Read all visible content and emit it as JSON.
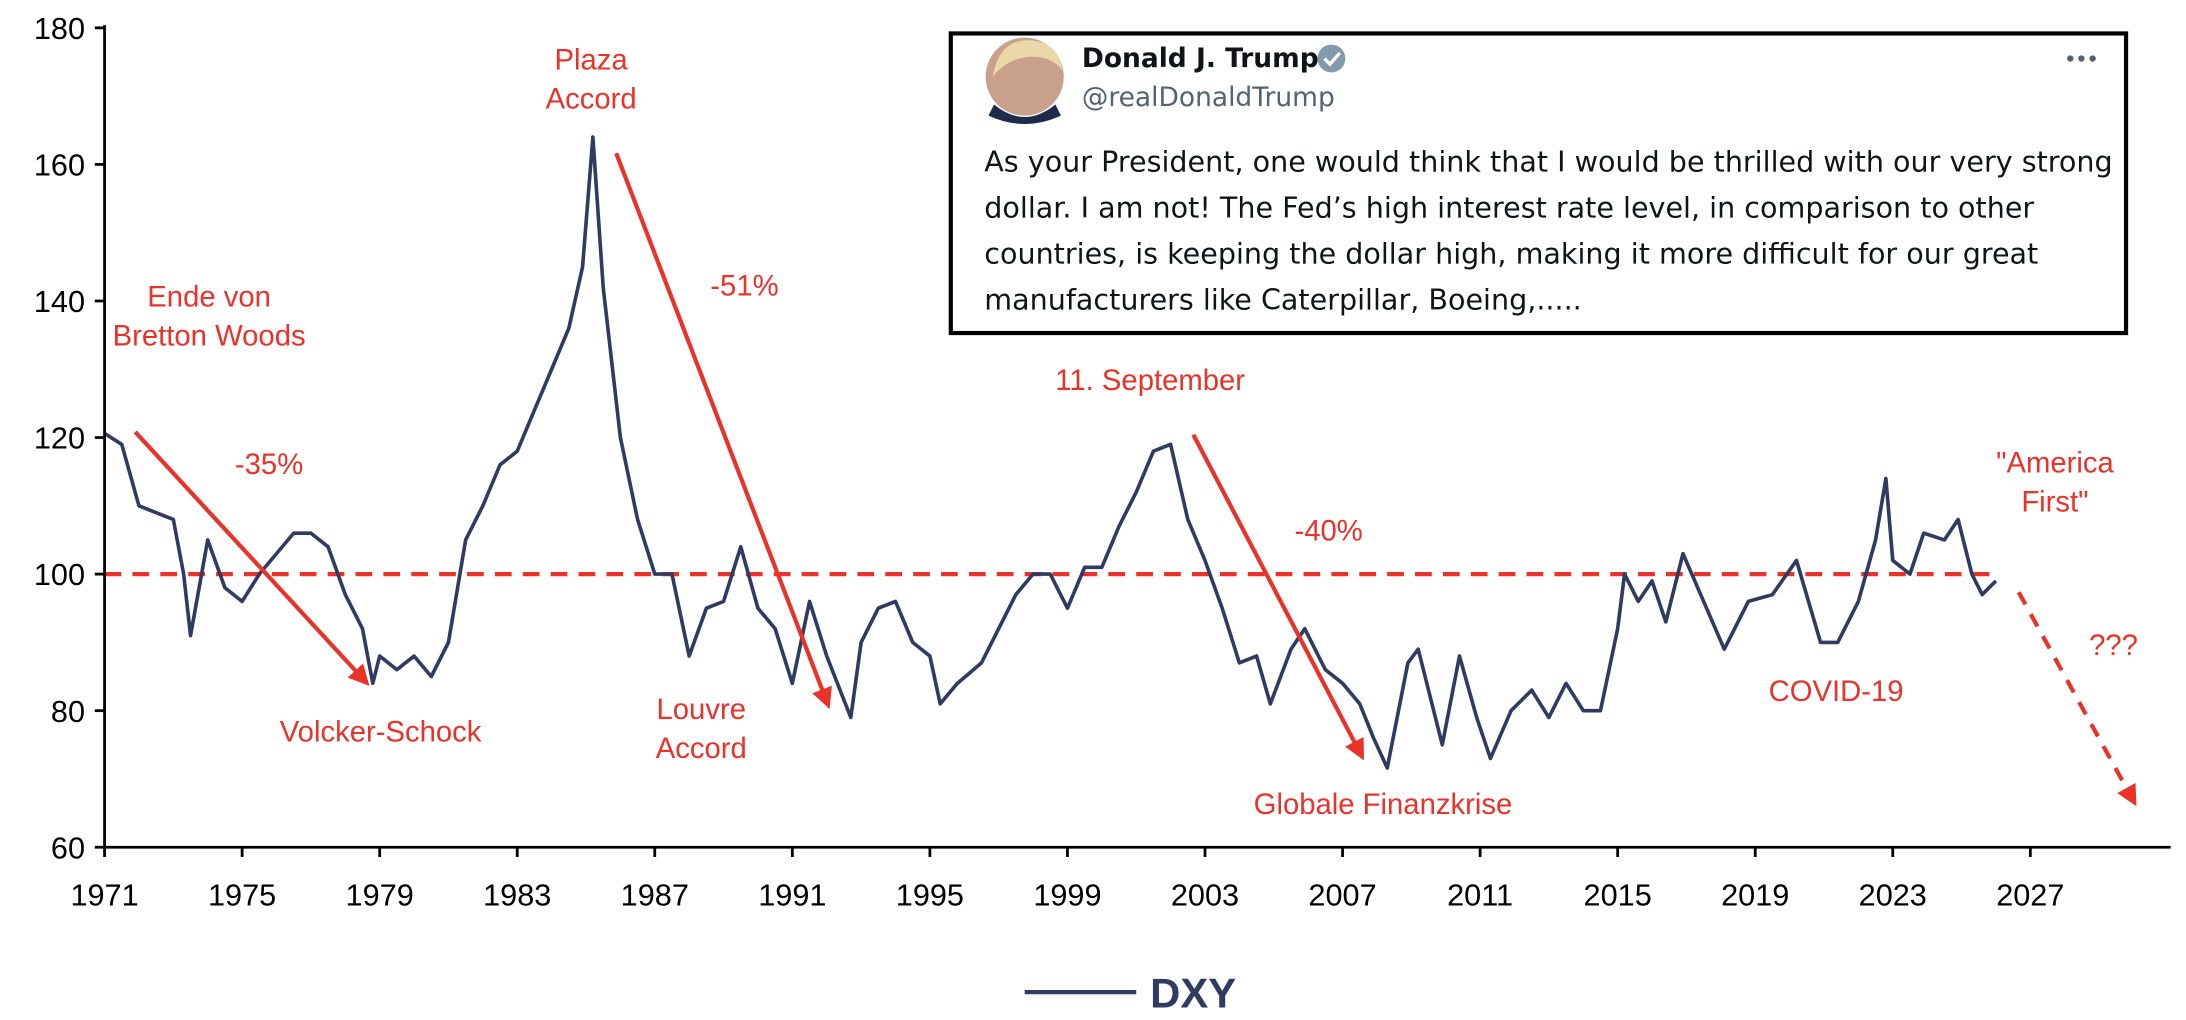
{
  "chart_data": {
    "type": "line",
    "x": [
      1971.0,
      1971.5,
      1972.0,
      1972.5,
      1973.0,
      1973.3,
      1973.5,
      1974.0,
      1974.5,
      1975.0,
      1975.5,
      1976.0,
      1976.5,
      1977.0,
      1977.5,
      1978.0,
      1978.5,
      1978.8,
      1979.0,
      1979.5,
      1980.0,
      1980.5,
      1981.0,
      1981.5,
      1982.0,
      1982.5,
      1983.0,
      1983.5,
      1984.0,
      1984.5,
      1984.9,
      1985.2,
      1985.5,
      1986.0,
      1986.5,
      1987.0,
      1987.5,
      1988.0,
      1988.5,
      1989.0,
      1989.5,
      1990.0,
      1990.5,
      1991.0,
      1991.5,
      1992.0,
      1992.7,
      1993.0,
      1993.5,
      1994.0,
      1994.5,
      1995.0,
      1995.3,
      1995.8,
      1996.5,
      1997.0,
      1997.5,
      1998.0,
      1998.5,
      1999.0,
      1999.5,
      2000.0,
      2000.5,
      2001.0,
      2001.5,
      2002.0,
      2002.5,
      2003.0,
      2003.5,
      2004.0,
      2004.5,
      2004.9,
      2005.5,
      2005.9,
      2006.5,
      2007.0,
      2007.5,
      2007.9,
      2008.3,
      2008.9,
      2009.2,
      2009.9,
      2010.4,
      2010.9,
      2011.3,
      2011.9,
      2012.5,
      2013.0,
      2013.5,
      2014.0,
      2014.5,
      2015.0,
      2015.2,
      2015.6,
      2016.0,
      2016.4,
      2016.9,
      2017.5,
      2018.1,
      2018.8,
      2019.5,
      2020.2,
      2020.9,
      2021.4,
      2022.0,
      2022.5,
      2022.8,
      2023.0,
      2023.5,
      2023.9,
      2024.5,
      2024.9,
      2025.3,
      2025.6,
      2026.0
    ],
    "series": [
      {
        "name": "DXY",
        "color": "#2f3b61",
        "values": [
          120.6,
          119,
          110,
          109,
          108,
          100,
          91,
          105,
          98,
          96,
          100,
          103,
          106,
          106,
          104,
          97,
          92,
          84,
          88,
          86,
          88,
          85,
          90,
          105,
          110,
          116,
          118,
          124,
          130,
          136,
          145,
          164,
          142,
          120,
          108,
          100,
          100,
          88,
          95,
          96,
          104,
          95,
          92,
          84,
          96,
          88,
          79,
          90,
          95,
          96,
          90,
          88,
          81,
          84,
          87,
          92,
          97,
          100,
          100,
          95,
          101,
          101,
          107,
          112,
          118,
          119,
          108,
          102,
          95,
          87,
          88,
          81,
          89,
          92,
          86,
          84,
          81,
          76,
          71.6,
          87,
          89,
          75,
          88,
          79,
          73,
          80,
          83,
          79,
          84,
          80,
          80,
          92,
          100,
          96,
          99,
          93,
          103,
          96,
          89,
          96,
          97,
          102,
          90,
          90,
          96,
          105,
          114,
          102,
          100,
          106,
          105,
          108,
          100,
          97,
          99
        ]
      }
    ],
    "xlim": [
      1971,
      2031
    ],
    "ylim": [
      60,
      180
    ],
    "xticks": [
      1971,
      1975,
      1979,
      1983,
      1987,
      1991,
      1995,
      1999,
      2003,
      2007,
      2011,
      2015,
      2019,
      2023,
      2027
    ],
    "yticks": [
      60,
      80,
      100,
      120,
      140,
      160,
      180
    ],
    "reference_line": 100,
    "reference_color": "#e8322a",
    "legend": "bottom",
    "annotation_color": "#e8322a",
    "annotations": [
      [
        "Ende von",
        "Bretton Woods"
      ],
      [
        "-35%"
      ],
      [
        "Volcker-Schock"
      ],
      [
        "Plaza",
        "Accord"
      ],
      [
        "-51%"
      ],
      [
        "Louvre",
        "Accord"
      ],
      [
        "11. September"
      ],
      [
        "-40%"
      ],
      [
        "Globale Finanzkrise"
      ],
      [
        "\"America",
        "First\""
      ],
      [
        "???"
      ],
      [
        "COVID-19"
      ]
    ]
  },
  "tweet": {
    "name": "Donald J. Trump",
    "handle": "@realDonaldTrump",
    "text": "As your President, one would think that I would be thrilled with our very strong dollar. I am not! The Fed’s high interest rate level, in comparison to other countries, is keeping the dollar high, making it more difficult for our great manufacturers like Caterpillar, Boeing,....."
  }
}
